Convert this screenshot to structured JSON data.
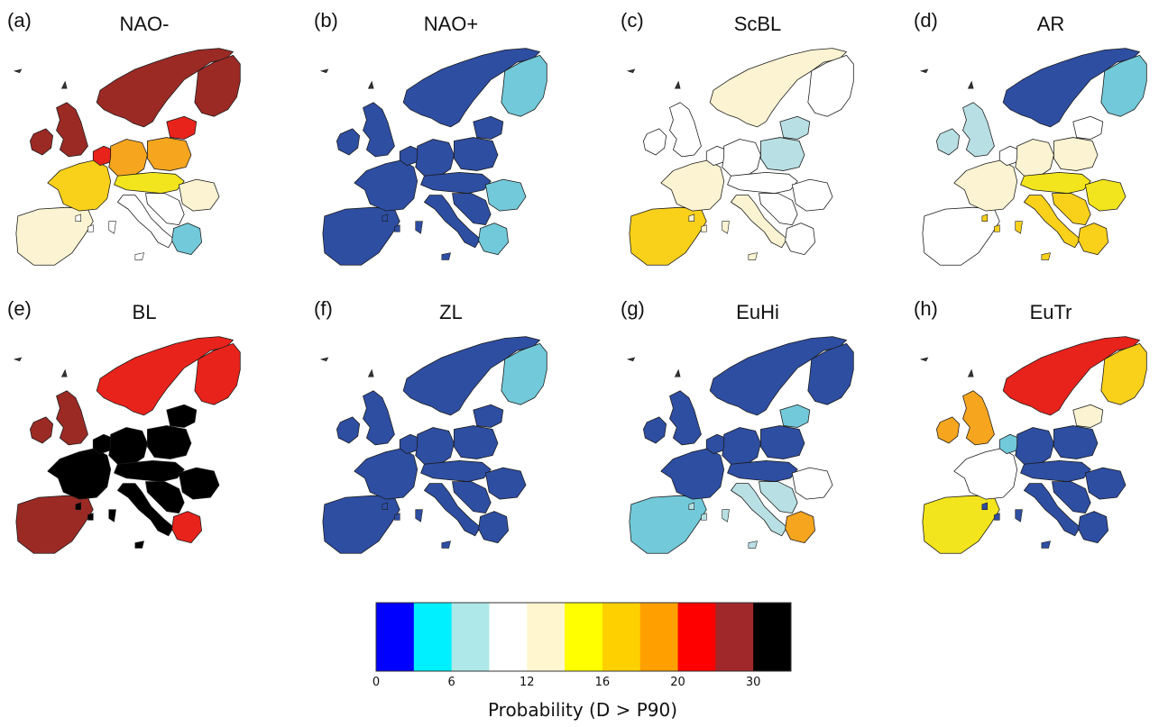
{
  "panels": [
    {
      "id": "a",
      "letter": "(a)",
      "title": "NAO-",
      "colors": {
        "scandinavia": "#9b2a25",
        "finland": "#9b2a25",
        "uk": "#9b2a25",
        "ireland": "#9b2a25",
        "iberia": "#fbf3d1",
        "france": "#f9d01a",
        "benelux": "#e8231c",
        "germany": "#f6a51f",
        "poland": "#f6a51f",
        "baltics": "#e8231c",
        "central": "#f2e41d",
        "italy": "#ffffff",
        "balkans": "#ffffff",
        "romania": "#fbf3d1",
        "greece": "#72c9d9"
      }
    },
    {
      "id": "b",
      "letter": "(b)",
      "title": "NAO+",
      "colors": {
        "scandinavia": "#2e4ea2",
        "finland": "#72c9d9",
        "uk": "#2e4ea2",
        "ireland": "#2e4ea2",
        "iberia": "#2e4ea2",
        "france": "#2e4ea2",
        "benelux": "#2e4ea2",
        "germany": "#2e4ea2",
        "poland": "#2e4ea2",
        "baltics": "#2e4ea2",
        "central": "#2e4ea2",
        "italy": "#2e4ea2",
        "balkans": "#2e4ea2",
        "romania": "#72c9d9",
        "greece": "#72c9d9"
      }
    },
    {
      "id": "c",
      "letter": "(c)",
      "title": "ScBL",
      "colors": {
        "scandinavia": "#fbf3d1",
        "finland": "#ffffff",
        "uk": "#ffffff",
        "ireland": "#ffffff",
        "iberia": "#f9d01a",
        "france": "#fbf3d1",
        "benelux": "#ffffff",
        "germany": "#ffffff",
        "poland": "#b8e0e4",
        "baltics": "#b8e0e4",
        "central": "#ffffff",
        "italy": "#fbf3d1",
        "balkans": "#ffffff",
        "romania": "#ffffff",
        "greece": "#ffffff"
      }
    },
    {
      "id": "d",
      "letter": "(d)",
      "title": "AR",
      "colors": {
        "scandinavia": "#2e4ea2",
        "finland": "#72c9d9",
        "uk": "#b8e0e4",
        "ireland": "#b8e0e4",
        "iberia": "#ffffff",
        "france": "#fbf3d1",
        "benelux": "#ffffff",
        "germany": "#fbf3d1",
        "poland": "#fbf3d1",
        "baltics": "#ffffff",
        "central": "#f2e41d",
        "italy": "#f9d01a",
        "balkans": "#f9d01a",
        "romania": "#f2e41d",
        "greece": "#f9d01a"
      }
    },
    {
      "id": "e",
      "letter": "(e)",
      "title": "BL",
      "colors": {
        "scandinavia": "#e8231c",
        "finland": "#e8231c",
        "uk": "#9b2a25",
        "ireland": "#9b2a25",
        "iberia": "#9b2a25",
        "france": "#000000",
        "benelux": "#000000",
        "germany": "#000000",
        "poland": "#000000",
        "baltics": "#000000",
        "central": "#000000",
        "italy": "#000000",
        "balkans": "#000000",
        "romania": "#000000",
        "greece": "#e8231c"
      }
    },
    {
      "id": "f",
      "letter": "(f)",
      "title": "ZL",
      "colors": {
        "scandinavia": "#2e4ea2",
        "finland": "#72c9d9",
        "uk": "#2e4ea2",
        "ireland": "#2e4ea2",
        "iberia": "#2e4ea2",
        "france": "#2e4ea2",
        "benelux": "#2e4ea2",
        "germany": "#2e4ea2",
        "poland": "#2e4ea2",
        "baltics": "#2e4ea2",
        "central": "#2e4ea2",
        "italy": "#2e4ea2",
        "balkans": "#2e4ea2",
        "romania": "#2e4ea2",
        "greece": "#2e4ea2"
      }
    },
    {
      "id": "g",
      "letter": "(g)",
      "title": "EuHi",
      "colors": {
        "scandinavia": "#2e4ea2",
        "finland": "#2e4ea2",
        "uk": "#2e4ea2",
        "ireland": "#2e4ea2",
        "iberia": "#72c9d9",
        "france": "#2e4ea2",
        "benelux": "#2e4ea2",
        "germany": "#2e4ea2",
        "poland": "#2e4ea2",
        "baltics": "#72c9d9",
        "central": "#2e4ea2",
        "italy": "#b8e0e4",
        "balkans": "#b8e0e4",
        "romania": "#ffffff",
        "greece": "#f6a51f"
      }
    },
    {
      "id": "h",
      "letter": "(h)",
      "title": "EuTr",
      "colors": {
        "scandinavia": "#e8231c",
        "finland": "#f9d01a",
        "uk": "#f6a51f",
        "ireland": "#f6a51f",
        "iberia": "#f2e41d",
        "france": "#ffffff",
        "benelux": "#72c9d9",
        "germany": "#2e4ea2",
        "poland": "#2e4ea2",
        "baltics": "#fbf3d1",
        "central": "#2e4ea2",
        "italy": "#2e4ea2",
        "balkans": "#2e4ea2",
        "romania": "#2e4ea2",
        "greece": "#2e4ea2"
      }
    }
  ],
  "colorbar": {
    "colors": [
      "#0000ff",
      "#00f0ff",
      "#aee8e8",
      "#ffffff",
      "#fff6d0",
      "#ffff00",
      "#ffd000",
      "#ffa000",
      "#ff0000",
      "#a0282a",
      "#000000"
    ],
    "ticks": [
      "0",
      "6",
      "12",
      "16",
      "20",
      "30"
    ],
    "label": "Probability (D > P90)"
  }
}
